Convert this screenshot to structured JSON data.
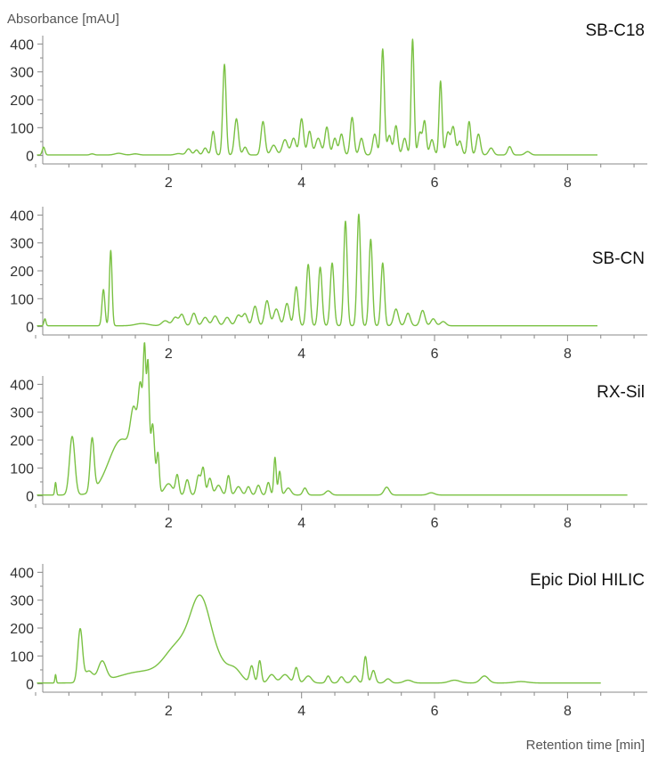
{
  "chart_data": {
    "type": "line",
    "y_axis_title": "Absorbance [mAU]",
    "x_axis_title": "Retention time [min]",
    "xlim": [
      0,
      9.2
    ],
    "ylim": [
      -30,
      430
    ],
    "x_ticks": [
      2,
      4,
      6,
      8
    ],
    "y_ticks": [
      0,
      100,
      200,
      300,
      400
    ],
    "line_color": "#7ac143",
    "panels": [
      {
        "label": "SB-C18",
        "x_end": 8.45,
        "baseline": 2,
        "peaks": [
          [
            0.12,
            28,
            0.02
          ],
          [
            0.85,
            4,
            0.03
          ],
          [
            1.25,
            6,
            0.06
          ],
          [
            1.5,
            4,
            0.05
          ],
          [
            2.15,
            5,
            0.05
          ],
          [
            2.3,
            22,
            0.035
          ],
          [
            2.42,
            18,
            0.03
          ],
          [
            2.55,
            25,
            0.03
          ],
          [
            2.67,
            85,
            0.025
          ],
          [
            2.84,
            325,
            0.025
          ],
          [
            3.02,
            130,
            0.03
          ],
          [
            3.15,
            28,
            0.03
          ],
          [
            3.42,
            120,
            0.03
          ],
          [
            3.58,
            35,
            0.04
          ],
          [
            3.75,
            55,
            0.04
          ],
          [
            3.88,
            60,
            0.035
          ],
          [
            4.0,
            130,
            0.03
          ],
          [
            4.12,
            85,
            0.03
          ],
          [
            4.25,
            60,
            0.04
          ],
          [
            4.38,
            100,
            0.03
          ],
          [
            4.5,
            60,
            0.03
          ],
          [
            4.6,
            75,
            0.03
          ],
          [
            4.76,
            135,
            0.028
          ],
          [
            4.9,
            60,
            0.03
          ],
          [
            5.1,
            75,
            0.03
          ],
          [
            5.22,
            380,
            0.025
          ],
          [
            5.32,
            70,
            0.03
          ],
          [
            5.42,
            105,
            0.028
          ],
          [
            5.55,
            60,
            0.03
          ],
          [
            5.67,
            415,
            0.022
          ],
          [
            5.78,
            80,
            0.028
          ],
          [
            5.85,
            120,
            0.025
          ],
          [
            5.96,
            55,
            0.03
          ],
          [
            6.09,
            265,
            0.022
          ],
          [
            6.2,
            80,
            0.03
          ],
          [
            6.28,
            100,
            0.03
          ],
          [
            6.38,
            50,
            0.03
          ],
          [
            6.52,
            120,
            0.025
          ],
          [
            6.66,
            75,
            0.03
          ],
          [
            6.85,
            25,
            0.035
          ],
          [
            7.13,
            30,
            0.03
          ],
          [
            7.4,
            12,
            0.04
          ]
        ]
      },
      {
        "label": "SB-CN",
        "x_end": 8.45,
        "baseline": 3,
        "peaks": [
          [
            0.14,
            25,
            0.015
          ],
          [
            1.02,
            130,
            0.022
          ],
          [
            1.13,
            270,
            0.02
          ],
          [
            1.6,
            8,
            0.1
          ],
          [
            1.95,
            18,
            0.05
          ],
          [
            2.1,
            30,
            0.04
          ],
          [
            2.2,
            40,
            0.035
          ],
          [
            2.38,
            45,
            0.035
          ],
          [
            2.55,
            30,
            0.04
          ],
          [
            2.7,
            35,
            0.04
          ],
          [
            2.88,
            30,
            0.04
          ],
          [
            3.05,
            38,
            0.04
          ],
          [
            3.15,
            42,
            0.035
          ],
          [
            3.3,
            70,
            0.035
          ],
          [
            3.48,
            90,
            0.035
          ],
          [
            3.62,
            60,
            0.04
          ],
          [
            3.78,
            80,
            0.035
          ],
          [
            3.92,
            140,
            0.03
          ],
          [
            4.1,
            220,
            0.028
          ],
          [
            4.28,
            210,
            0.028
          ],
          [
            4.46,
            225,
            0.028
          ],
          [
            4.66,
            375,
            0.026
          ],
          [
            4.86,
            400,
            0.026
          ],
          [
            5.04,
            310,
            0.026
          ],
          [
            5.22,
            225,
            0.026
          ],
          [
            5.42,
            60,
            0.035
          ],
          [
            5.6,
            45,
            0.035
          ],
          [
            5.82,
            55,
            0.035
          ],
          [
            5.98,
            25,
            0.035
          ],
          [
            6.13,
            15,
            0.04
          ]
        ]
      },
      {
        "label": "RX-Sil",
        "x_end": 8.9,
        "baseline": 3,
        "peaks": [
          [
            0.3,
            45,
            0.012
          ],
          [
            0.55,
            210,
            0.04
          ],
          [
            0.85,
            190,
            0.03
          ],
          [
            1.3,
            200,
            0.2
          ],
          [
            1.48,
            180,
            0.05
          ],
          [
            1.58,
            300,
            0.035
          ],
          [
            1.64,
            410,
            0.02
          ],
          [
            1.69,
            420,
            0.02
          ],
          [
            1.76,
            240,
            0.03
          ],
          [
            1.84,
            140,
            0.02
          ],
          [
            2.0,
            40,
            0.06
          ],
          [
            2.13,
            70,
            0.025
          ],
          [
            2.28,
            55,
            0.03
          ],
          [
            2.45,
            70,
            0.03
          ],
          [
            2.52,
            95,
            0.025
          ],
          [
            2.62,
            60,
            0.03
          ],
          [
            2.75,
            35,
            0.04
          ],
          [
            2.9,
            70,
            0.025
          ],
          [
            3.05,
            30,
            0.04
          ],
          [
            3.2,
            30,
            0.03
          ],
          [
            3.35,
            35,
            0.03
          ],
          [
            3.5,
            45,
            0.025
          ],
          [
            3.6,
            135,
            0.018
          ],
          [
            3.67,
            85,
            0.02
          ],
          [
            3.8,
            25,
            0.04
          ],
          [
            4.05,
            25,
            0.03
          ],
          [
            4.4,
            15,
            0.04
          ],
          [
            5.28,
            28,
            0.04
          ],
          [
            5.95,
            8,
            0.05
          ]
        ]
      },
      {
        "label": "Epic Diol HILIC",
        "x_end": 8.5,
        "baseline": 3,
        "peaks": [
          [
            0.3,
            30,
            0.01
          ],
          [
            0.67,
            190,
            0.035
          ],
          [
            0.8,
            40,
            0.06
          ],
          [
            1.0,
            70,
            0.06
          ],
          [
            1.6,
            40,
            0.35
          ],
          [
            2.15,
            120,
            0.2
          ],
          [
            2.48,
            270,
            0.15
          ],
          [
            2.75,
            60,
            0.15
          ],
          [
            3.0,
            40,
            0.1
          ],
          [
            3.25,
            60,
            0.03
          ],
          [
            3.37,
            80,
            0.025
          ],
          [
            3.55,
            30,
            0.05
          ],
          [
            3.75,
            30,
            0.06
          ],
          [
            3.92,
            55,
            0.03
          ],
          [
            4.1,
            25,
            0.05
          ],
          [
            4.4,
            25,
            0.03
          ],
          [
            4.6,
            22,
            0.035
          ],
          [
            4.8,
            25,
            0.04
          ],
          [
            4.96,
            95,
            0.025
          ],
          [
            5.08,
            45,
            0.03
          ],
          [
            5.3,
            15,
            0.04
          ],
          [
            5.6,
            10,
            0.06
          ],
          [
            6.3,
            10,
            0.08
          ],
          [
            6.75,
            25,
            0.06
          ],
          [
            7.3,
            5,
            0.1
          ]
        ]
      }
    ]
  }
}
